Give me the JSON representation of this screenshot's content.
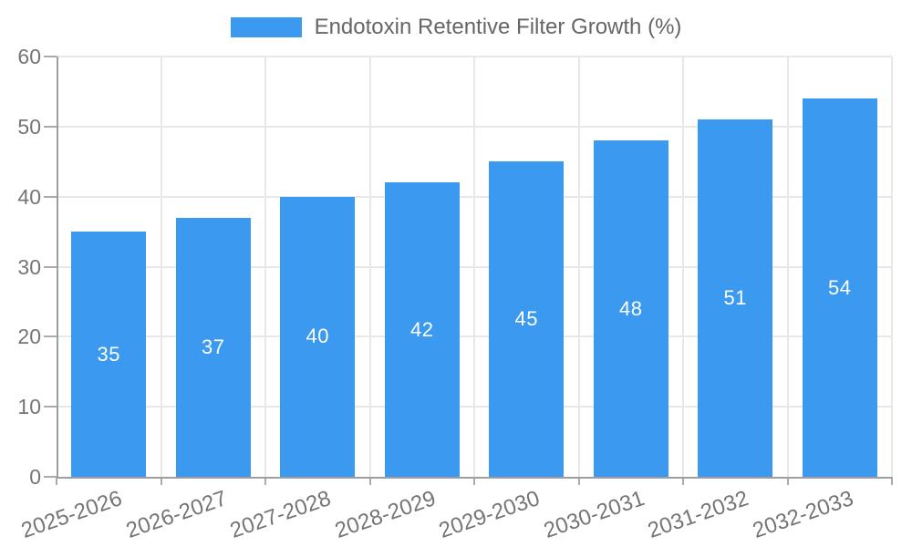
{
  "legend": {
    "label": "Endotoxin Retentive Filter Growth (%)"
  },
  "chart_data": {
    "type": "bar",
    "title": "Endotoxin Retentive Filter Growth (%)",
    "categories": [
      "2025-2026",
      "2026-2027",
      "2027-2028",
      "2028-2029",
      "2029-2030",
      "2030-2031",
      "2031-2032",
      "2032-2033"
    ],
    "values": [
      35,
      37,
      40,
      42,
      45,
      48,
      51,
      54
    ],
    "xlabel": "",
    "ylabel": "",
    "ylim": [
      0,
      60
    ],
    "yticks": [
      0,
      10,
      20,
      30,
      40,
      50,
      60
    ],
    "grid": true,
    "legend_position": "top-center",
    "bar_color": "#3b99ef",
    "value_label_color": "#ffffff",
    "axis_color": "#9e9e9e",
    "grid_color": "#e8e8e8",
    "tick_mark_color": "#ababab",
    "tick_label_color": "#757575",
    "legend_text_color": "#666666",
    "x_label_rotation_deg": -19
  }
}
